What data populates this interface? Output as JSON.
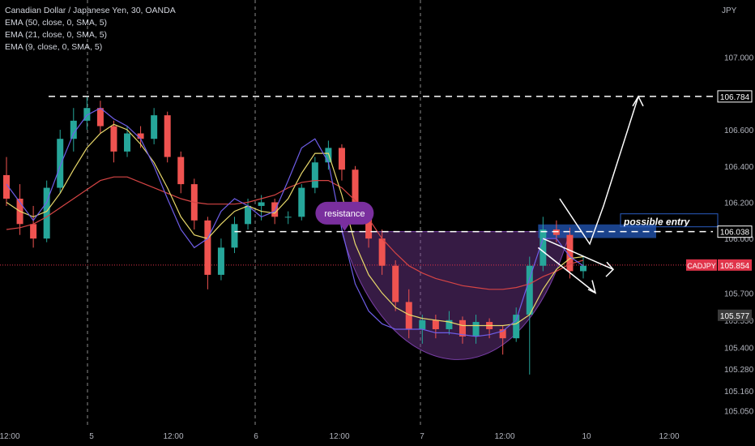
{
  "chart_data": {
    "type": "candlestick",
    "title": "Canadian Dollar / Japanese Yen, 30, OANDA",
    "symbol": "CADJPY",
    "currency": "JPY",
    "indicators": [
      {
        "label": "EMA (50, close, 0, SMA, 5)",
        "color": "#d64545",
        "values": [
          106.05,
          106.06,
          106.08,
          106.12,
          106.17,
          106.22,
          106.27,
          106.32,
          106.34,
          106.34,
          106.31,
          106.28,
          106.25,
          106.22,
          106.2,
          106.19,
          106.19,
          106.19,
          106.2,
          106.22,
          106.24,
          106.28,
          106.31,
          106.32,
          106.32,
          106.28,
          106.21,
          106.11,
          106.0,
          105.92,
          105.85,
          105.81,
          105.78,
          105.76,
          105.74,
          105.73,
          105.72,
          105.72,
          105.73,
          105.75,
          105.79,
          105.82,
          105.86,
          105.88
        ]
      },
      {
        "label": "EMA (21, close, 0, SMA, 5)",
        "color": "#e8d86a",
        "values": [
          106.2,
          106.15,
          106.12,
          106.15,
          106.25,
          106.38,
          106.5,
          106.58,
          106.63,
          106.6,
          106.52,
          106.42,
          106.28,
          106.12,
          106.02,
          106.0,
          106.08,
          106.15,
          106.18,
          106.15,
          106.14,
          106.22,
          106.36,
          106.47,
          106.47,
          106.24,
          105.97,
          105.8,
          105.7,
          105.62,
          105.58,
          105.56,
          105.55,
          105.54,
          105.52,
          105.52,
          105.52,
          105.52,
          105.53,
          105.58,
          105.72,
          105.83,
          105.89,
          105.9
        ]
      },
      {
        "label": "EMA (9, close, 0, SMA, 5)",
        "color": "#6f5ee8",
        "values": [
          106.3,
          106.2,
          106.1,
          106.2,
          106.4,
          106.58,
          106.68,
          106.72,
          106.66,
          106.62,
          106.55,
          106.4,
          106.22,
          106.05,
          105.95,
          106.0,
          106.15,
          106.22,
          106.18,
          106.12,
          106.15,
          106.32,
          106.5,
          106.55,
          106.42,
          106.05,
          105.75,
          105.6,
          105.53,
          105.5,
          105.5,
          105.5,
          105.48,
          105.48,
          105.47,
          105.46,
          105.47,
          105.49,
          105.55,
          105.78,
          106.0,
          106.0,
          105.9,
          105.85
        ]
      }
    ],
    "x_axis_labels": [
      "12:00",
      "5",
      "12:00",
      "6",
      "12:00",
      "7",
      "12:00",
      "10",
      "12:00"
    ],
    "y_axis_ticks": [
      "107.000",
      "106.600",
      "106.400",
      "106.200",
      "105.700",
      "105.400",
      "105.280",
      "105.160",
      "105.050"
    ],
    "y_range": [
      104.99,
      107.28
    ],
    "price_markers": [
      {
        "value": 106.784,
        "label": "106.784",
        "style": "outline",
        "color": "#ffffff"
      },
      {
        "value": 106.038,
        "label": "106.038",
        "style": "outline",
        "color": "#ffffff"
      },
      {
        "value": 105.854,
        "label": "105.854",
        "tag": "CADJPY",
        "style": "filled",
        "color": "#e0344a"
      },
      {
        "value": 105.577,
        "label": "105.577",
        "style": "dark",
        "color": "#555555"
      }
    ],
    "hidden_axis_fragments": [
      {
        "value": 106.0,
        "label": "106.000"
      },
      {
        "value": 105.55,
        "label": "105.550"
      }
    ],
    "current_price": 105.854,
    "resistance_level": 106.038,
    "target_level": 106.784,
    "candles": [
      {
        "o": 106.35,
        "h": 106.45,
        "l": 106.18,
        "c": 106.22
      },
      {
        "o": 106.22,
        "h": 106.3,
        "l": 106.02,
        "c": 106.08
      },
      {
        "o": 106.08,
        "h": 106.18,
        "l": 105.95,
        "c": 106.0
      },
      {
        "o": 106.0,
        "h": 106.32,
        "l": 105.98,
        "c": 106.28
      },
      {
        "o": 106.28,
        "h": 106.6,
        "l": 106.25,
        "c": 106.55
      },
      {
        "o": 106.55,
        "h": 106.72,
        "l": 106.48,
        "c": 106.65
      },
      {
        "o": 106.65,
        "h": 106.78,
        "l": 106.6,
        "c": 106.72
      },
      {
        "o": 106.72,
        "h": 106.76,
        "l": 106.58,
        "c": 106.62
      },
      {
        "o": 106.62,
        "h": 106.65,
        "l": 106.42,
        "c": 106.48
      },
      {
        "o": 106.48,
        "h": 106.62,
        "l": 106.45,
        "c": 106.58
      },
      {
        "o": 106.58,
        "h": 106.62,
        "l": 106.5,
        "c": 106.55
      },
      {
        "o": 106.55,
        "h": 106.72,
        "l": 106.52,
        "c": 106.68
      },
      {
        "o": 106.68,
        "h": 106.7,
        "l": 106.42,
        "c": 106.45
      },
      {
        "o": 106.45,
        "h": 106.48,
        "l": 106.25,
        "c": 106.3
      },
      {
        "o": 106.3,
        "h": 106.33,
        "l": 106.05,
        "c": 106.1
      },
      {
        "o": 106.1,
        "h": 106.12,
        "l": 105.72,
        "c": 105.8
      },
      {
        "o": 105.8,
        "h": 106.0,
        "l": 105.77,
        "c": 105.95
      },
      {
        "o": 105.95,
        "h": 106.12,
        "l": 105.92,
        "c": 106.08
      },
      {
        "o": 106.08,
        "h": 106.22,
        "l": 106.05,
        "c": 106.18
      },
      {
        "o": 106.18,
        "h": 106.24,
        "l": 106.1,
        "c": 106.2
      },
      {
        "o": 106.2,
        "h": 106.22,
        "l": 106.08,
        "c": 106.12
      },
      {
        "o": 106.12,
        "h": 106.15,
        "l": 106.08,
        "c": 106.12
      },
      {
        "o": 106.12,
        "h": 106.3,
        "l": 106.1,
        "c": 106.28
      },
      {
        "o": 106.28,
        "h": 106.45,
        "l": 106.25,
        "c": 106.42
      },
      {
        "o": 106.42,
        "h": 106.54,
        "l": 106.38,
        "c": 106.5
      },
      {
        "o": 106.5,
        "h": 106.52,
        "l": 106.32,
        "c": 106.38
      },
      {
        "o": 106.38,
        "h": 106.4,
        "l": 106.1,
        "c": 106.15
      },
      {
        "o": 106.15,
        "h": 106.18,
        "l": 105.95,
        "c": 106.0
      },
      {
        "o": 106.0,
        "h": 106.05,
        "l": 105.8,
        "c": 105.85
      },
      {
        "o": 105.85,
        "h": 105.88,
        "l": 105.6,
        "c": 105.65
      },
      {
        "o": 105.65,
        "h": 105.72,
        "l": 105.45,
        "c": 105.5
      },
      {
        "o": 105.5,
        "h": 105.58,
        "l": 105.42,
        "c": 105.55
      },
      {
        "o": 105.55,
        "h": 105.58,
        "l": 105.45,
        "c": 105.5
      },
      {
        "o": 105.5,
        "h": 105.6,
        "l": 105.47,
        "c": 105.55
      },
      {
        "o": 105.55,
        "h": 105.57,
        "l": 105.42,
        "c": 105.46
      },
      {
        "o": 105.46,
        "h": 105.58,
        "l": 105.42,
        "c": 105.54
      },
      {
        "o": 105.54,
        "h": 105.56,
        "l": 105.45,
        "c": 105.5
      },
      {
        "o": 105.5,
        "h": 105.52,
        "l": 105.36,
        "c": 105.45
      },
      {
        "o": 105.45,
        "h": 105.62,
        "l": 105.43,
        "c": 105.58
      },
      {
        "o": 105.58,
        "h": 105.9,
        "l": 105.25,
        "c": 105.85
      },
      {
        "o": 105.85,
        "h": 106.12,
        "l": 105.82,
        "c": 106.05
      },
      {
        "o": 106.05,
        "h": 106.1,
        "l": 105.98,
        "c": 106.02
      },
      {
        "o": 106.02,
        "h": 106.06,
        "l": 105.78,
        "c": 105.82
      },
      {
        "o": 105.82,
        "h": 105.9,
        "l": 105.78,
        "c": 105.85
      }
    ],
    "annotations": [
      {
        "text": "resistance",
        "kind": "callout-bubble",
        "color": "#7a2f9e"
      },
      {
        "text": "possible entry",
        "kind": "highlight-box",
        "color": "#1f4ea3"
      },
      {
        "kind": "cup-shape",
        "color": "#5e2b78"
      },
      {
        "kind": "arrow-path",
        "color": "#ffffff"
      }
    ]
  }
}
